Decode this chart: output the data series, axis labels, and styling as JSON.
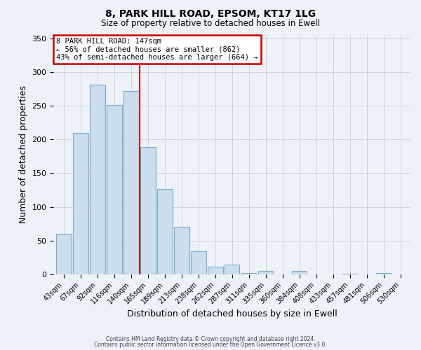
{
  "title1": "8, PARK HILL ROAD, EPSOM, KT17 1LG",
  "title2": "Size of property relative to detached houses in Ewell",
  "xlabel": "Distribution of detached houses by size in Ewell",
  "ylabel": "Number of detached properties",
  "bar_labels": [
    "43sqm",
    "67sqm",
    "92sqm",
    "116sqm",
    "140sqm",
    "165sqm",
    "189sqm",
    "213sqm",
    "238sqm",
    "262sqm",
    "287sqm",
    "311sqm",
    "335sqm",
    "360sqm",
    "384sqm",
    "408sqm",
    "433sqm",
    "457sqm",
    "481sqm",
    "506sqm",
    "530sqm"
  ],
  "bar_values": [
    60,
    210,
    281,
    251,
    272,
    189,
    127,
    70,
    34,
    11,
    14,
    2,
    5,
    0,
    5,
    0,
    0,
    1,
    0,
    2,
    0
  ],
  "bar_color": "#ccdded",
  "bar_edge_color": "#7aaac8",
  "property_line_x": 4.5,
  "property_line_color": "#cc0000",
  "annotation_title": "8 PARK HILL ROAD: 147sqm",
  "annotation_line1": "← 56% of detached houses are smaller (862)",
  "annotation_line2": "43% of semi-detached houses are larger (664) →",
  "annotation_box_color": "#ffffff",
  "annotation_box_edge_color": "#cc0000",
  "ylim": [
    0,
    355
  ],
  "yticks": [
    0,
    50,
    100,
    150,
    200,
    250,
    300,
    350
  ],
  "footer1": "Contains HM Land Registry data © Crown copyright and database right 2024.",
  "footer2": "Contains public sector information licensed under the Open Government Licence v3.0.",
  "bg_color": "#eef2f7",
  "plot_bg_color": "#eef2f7",
  "grid_color": "#c8d4e0"
}
